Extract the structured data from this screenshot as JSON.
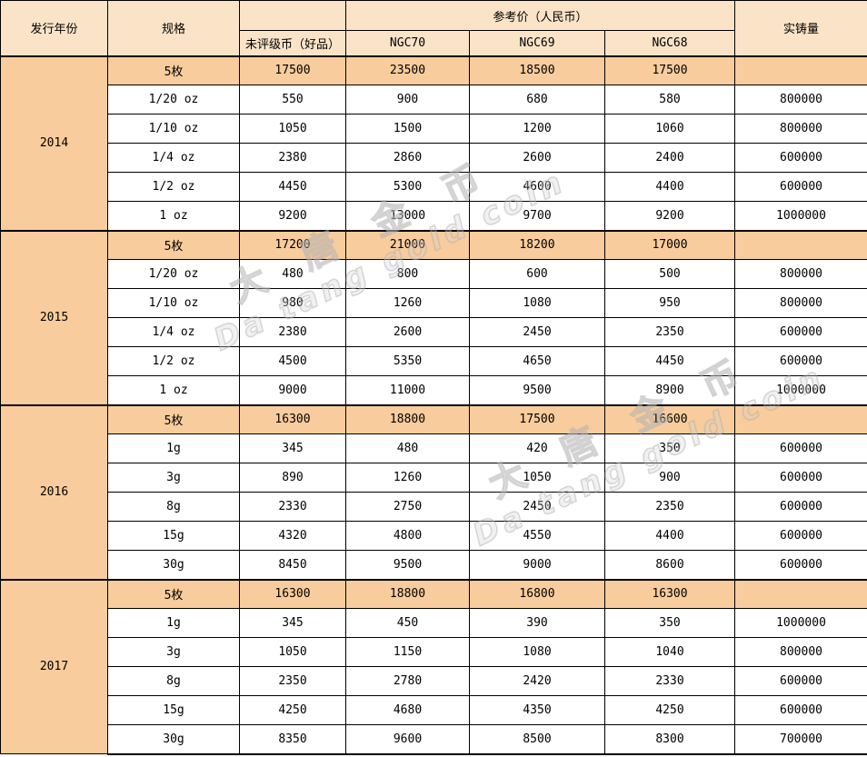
{
  "colors": {
    "header_bg": "#FBE3C8",
    "highlight_row_bg": "#F8CC9C",
    "border": "#000000",
    "watermark": "#BBBBBB"
  },
  "watermark": {
    "cn": "大唐金币",
    "en": "Da tang gold coin"
  },
  "table": {
    "header": {
      "year": "发行年份",
      "spec": "规格",
      "price_group": "参考价（人民币）",
      "ungraded": "未评级币（好品）",
      "ngc70": "NGC70",
      "ngc69": "NGC69",
      "ngc68": "NGC68",
      "mintage": "实铸量"
    },
    "groups": [
      {
        "year": "2014",
        "rows": [
          {
            "spec": "5枚",
            "ungraded": "17500",
            "ngc70": "23500",
            "ngc69": "18500",
            "ngc68": "17500",
            "mintage": "",
            "highlight": true
          },
          {
            "spec": "1/20 oz",
            "ungraded": "550",
            "ngc70": "900",
            "ngc69": "680",
            "ngc68": "580",
            "mintage": "800000",
            "highlight": false
          },
          {
            "spec": "1/10 oz",
            "ungraded": "1050",
            "ngc70": "1500",
            "ngc69": "1200",
            "ngc68": "1060",
            "mintage": "800000",
            "highlight": false
          },
          {
            "spec": "1/4 oz",
            "ungraded": "2380",
            "ngc70": "2860",
            "ngc69": "2600",
            "ngc68": "2400",
            "mintage": "600000",
            "highlight": false
          },
          {
            "spec": "1/2 oz",
            "ungraded": "4450",
            "ngc70": "5300",
            "ngc69": "4600",
            "ngc68": "4400",
            "mintage": "600000",
            "highlight": false
          },
          {
            "spec": "1 oz",
            "ungraded": "9200",
            "ngc70": "13000",
            "ngc69": "9700",
            "ngc68": "9200",
            "mintage": "1000000",
            "highlight": false
          }
        ]
      },
      {
        "year": "2015",
        "rows": [
          {
            "spec": "5枚",
            "ungraded": "17200",
            "ngc70": "21000",
            "ngc69": "18200",
            "ngc68": "17000",
            "mintage": "",
            "highlight": true
          },
          {
            "spec": "1/20 oz",
            "ungraded": "480",
            "ngc70": "800",
            "ngc69": "600",
            "ngc68": "500",
            "mintage": "800000",
            "highlight": false
          },
          {
            "spec": "1/10 oz",
            "ungraded": "980",
            "ngc70": "1260",
            "ngc69": "1080",
            "ngc68": "950",
            "mintage": "800000",
            "highlight": false
          },
          {
            "spec": "1/4 oz",
            "ungraded": "2380",
            "ngc70": "2600",
            "ngc69": "2450",
            "ngc68": "2350",
            "mintage": "600000",
            "highlight": false
          },
          {
            "spec": "1/2 oz",
            "ungraded": "4500",
            "ngc70": "5350",
            "ngc69": "4650",
            "ngc68": "4450",
            "mintage": "600000",
            "highlight": false
          },
          {
            "spec": "1 oz",
            "ungraded": "9000",
            "ngc70": "11000",
            "ngc69": "9500",
            "ngc68": "8900",
            "mintage": "1000000",
            "highlight": false
          }
        ]
      },
      {
        "year": "2016",
        "rows": [
          {
            "spec": "5枚",
            "ungraded": "16300",
            "ngc70": "18800",
            "ngc69": "17500",
            "ngc68": "16600",
            "mintage": "",
            "highlight": true
          },
          {
            "spec": "1g",
            "ungraded": "345",
            "ngc70": "480",
            "ngc69": "420",
            "ngc68": "350",
            "mintage": "600000",
            "highlight": false
          },
          {
            "spec": "3g",
            "ungraded": "890",
            "ngc70": "1260",
            "ngc69": "1050",
            "ngc68": "900",
            "mintage": "600000",
            "highlight": false
          },
          {
            "spec": "8g",
            "ungraded": "2330",
            "ngc70": "2750",
            "ngc69": "2450",
            "ngc68": "2350",
            "mintage": "600000",
            "highlight": false
          },
          {
            "spec": "15g",
            "ungraded": "4320",
            "ngc70": "4800",
            "ngc69": "4550",
            "ngc68": "4400",
            "mintage": "600000",
            "highlight": false
          },
          {
            "spec": "30g",
            "ungraded": "8450",
            "ngc70": "9500",
            "ngc69": "9000",
            "ngc68": "8600",
            "mintage": "600000",
            "highlight": false
          }
        ]
      },
      {
        "year": "2017",
        "rows": [
          {
            "spec": "5枚",
            "ungraded": "16300",
            "ngc70": "18800",
            "ngc69": "16800",
            "ngc68": "16300",
            "mintage": "",
            "highlight": true
          },
          {
            "spec": "1g",
            "ungraded": "345",
            "ngc70": "450",
            "ngc69": "390",
            "ngc68": "350",
            "mintage": "1000000",
            "highlight": false
          },
          {
            "spec": "3g",
            "ungraded": "1050",
            "ngc70": "1150",
            "ngc69": "1080",
            "ngc68": "1040",
            "mintage": "800000",
            "highlight": false
          },
          {
            "spec": "8g",
            "ungraded": "2350",
            "ngc70": "2780",
            "ngc69": "2420",
            "ngc68": "2330",
            "mintage": "600000",
            "highlight": false
          },
          {
            "spec": "15g",
            "ungraded": "4250",
            "ngc70": "4680",
            "ngc69": "4350",
            "ngc68": "4250",
            "mintage": "600000",
            "highlight": false
          },
          {
            "spec": "30g",
            "ungraded": "8350",
            "ngc70": "9600",
            "ngc69": "8500",
            "ngc68": "8300",
            "mintage": "700000",
            "highlight": false
          }
        ]
      }
    ]
  }
}
